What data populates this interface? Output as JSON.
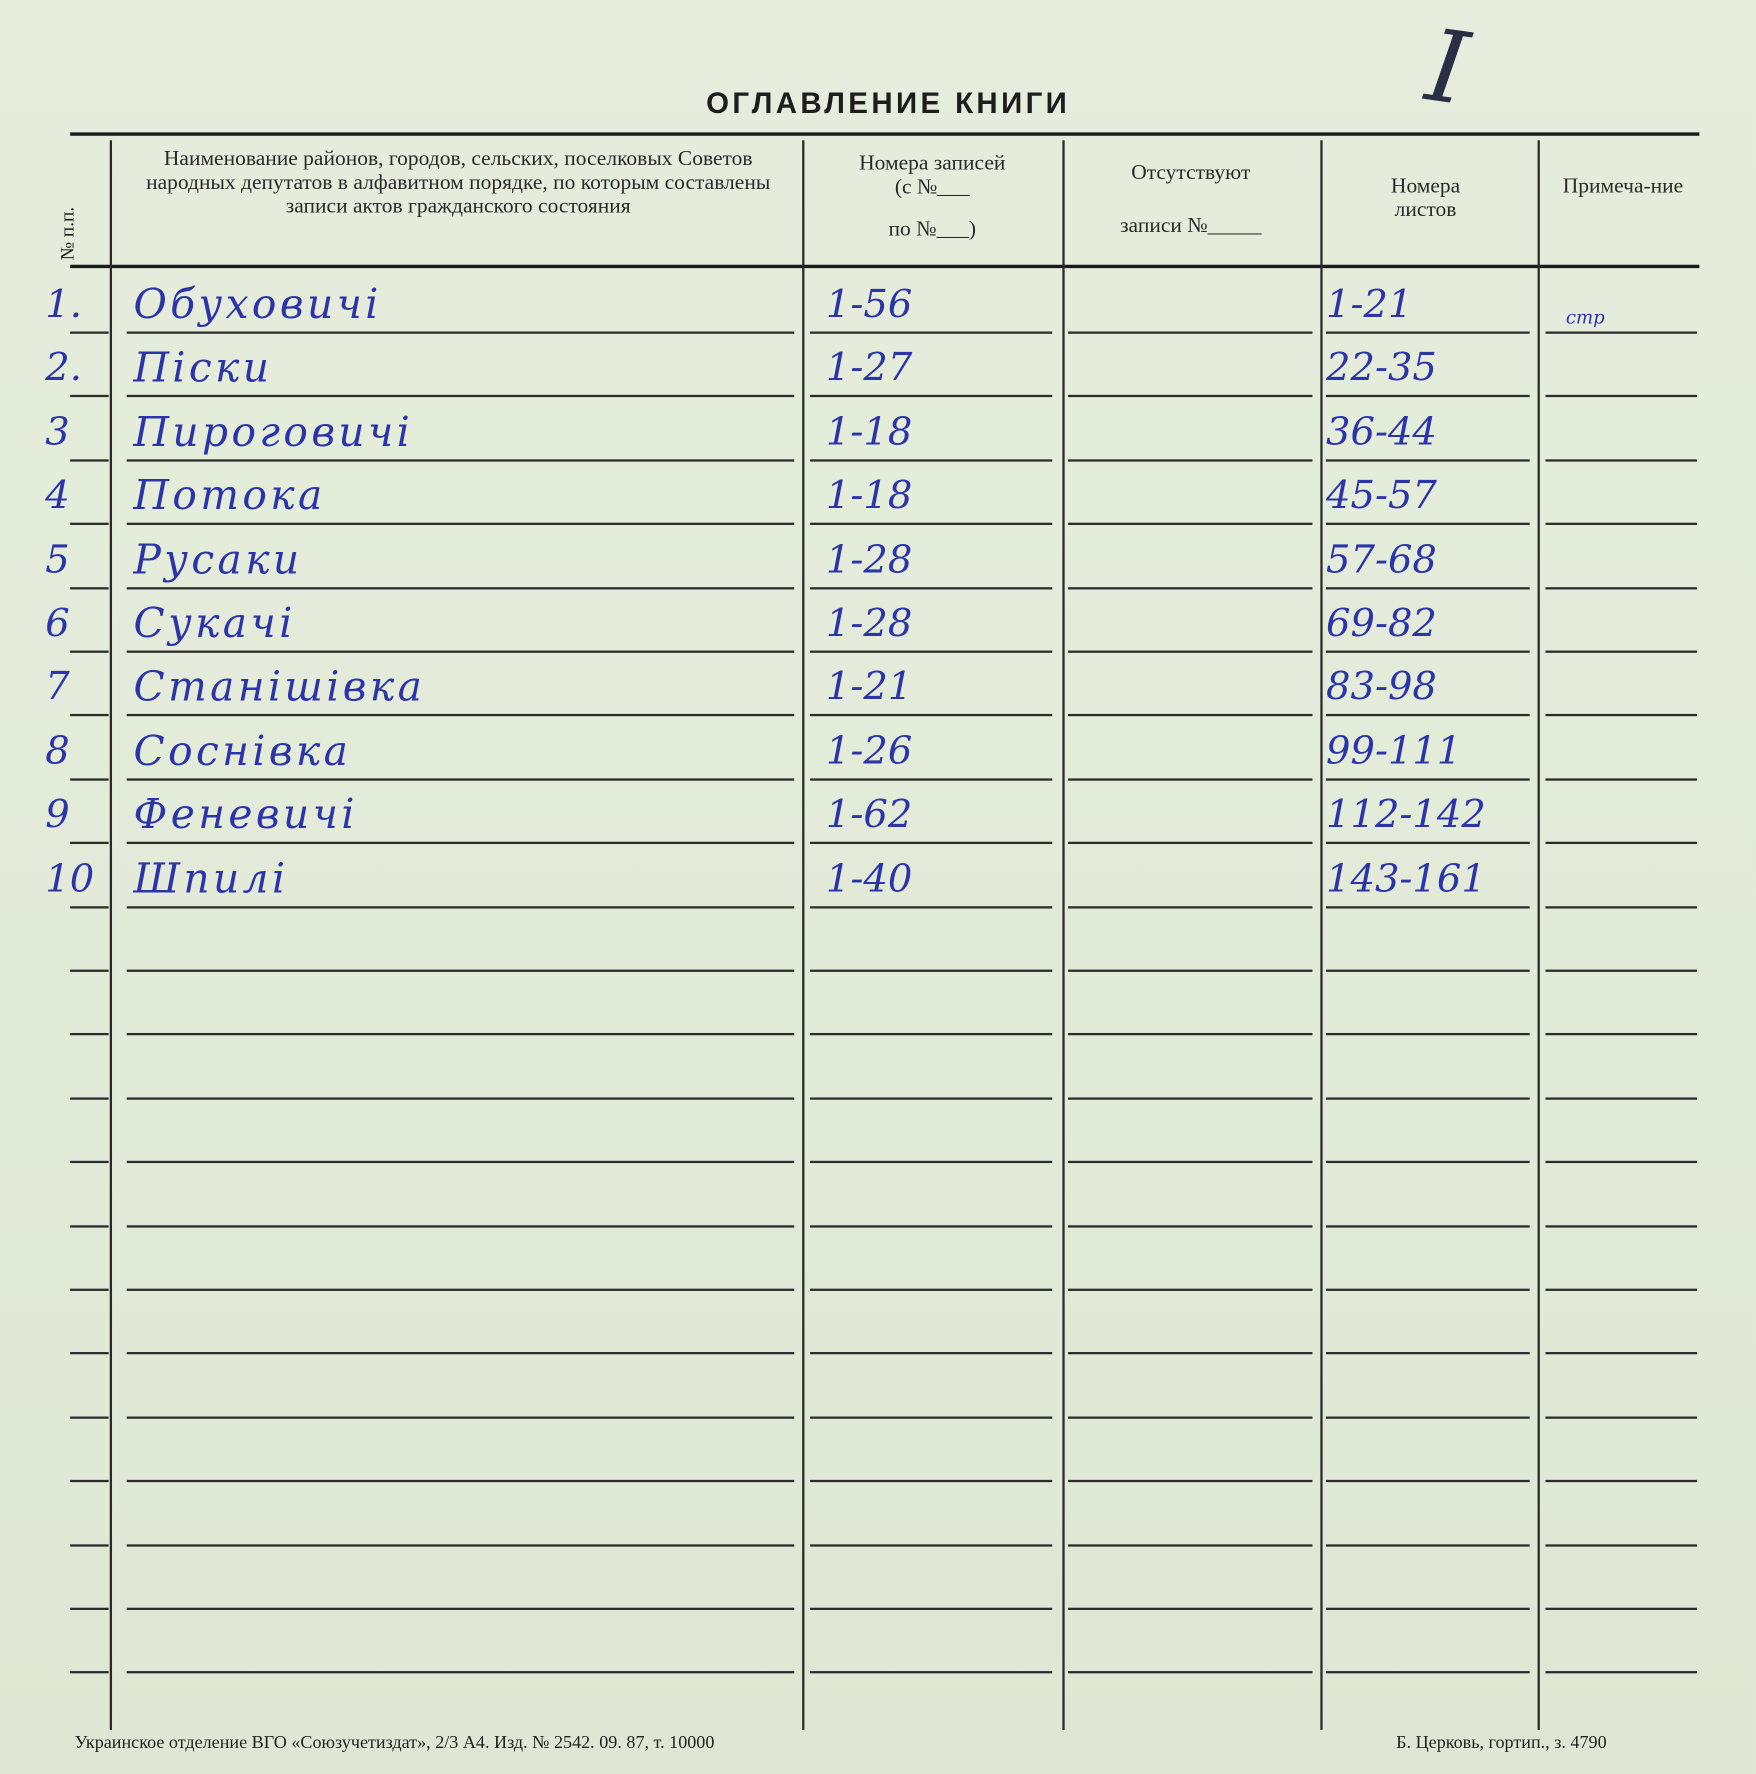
{
  "title": "ОГЛАВЛЕНИЕ КНИГИ",
  "corner_mark": "I",
  "headers": {
    "no": "№ п.п.",
    "name": "Наименование районов, городов, сельских, поселковых Советов народных депутатов в алфавитном порядке, по которым составлены записи актов гражданского состояния",
    "records_line1": "Номера записей",
    "records_line2": "(с №___",
    "records_line3": "по №___)",
    "absent_line1": "Отсутствуют",
    "absent_line2": "записи №_____",
    "sheets": "Номера листов",
    "note": "Примеча-ние"
  },
  "rows": [
    {
      "no": "1.",
      "name": "Обуховичі",
      "records": "1-56",
      "absent": "",
      "sheets": "1-21",
      "note": "стр"
    },
    {
      "no": "2.",
      "name": "Піски",
      "records": "1-27",
      "absent": "",
      "sheets": "22-35",
      "note": ""
    },
    {
      "no": "3",
      "name": "Пироговичі",
      "records": "1-18",
      "absent": "",
      "sheets": "36-44",
      "note": ""
    },
    {
      "no": "4",
      "name": "Потока",
      "records": "1-18",
      "absent": "",
      "sheets": "45-57",
      "note": ""
    },
    {
      "no": "5",
      "name": "Русаки",
      "records": "1-28",
      "absent": "",
      "sheets": "57-68",
      "note": ""
    },
    {
      "no": "6",
      "name": "Сукачі",
      "records": "1-28",
      "absent": "",
      "sheets": "69-82",
      "note": ""
    },
    {
      "no": "7",
      "name": "Станішівка",
      "records": "1-21",
      "absent": "",
      "sheets": "83-98",
      "note": ""
    },
    {
      "no": "8",
      "name": "Соснівка",
      "records": "1-26",
      "absent": "",
      "sheets": "99-111",
      "note": ""
    },
    {
      "no": "9",
      "name": "Феневичі",
      "records": "1-62",
      "absent": "",
      "sheets": "112-142",
      "note": ""
    },
    {
      "no": "10",
      "name": "Шпилі",
      "records": "1-40",
      "absent": "",
      "sheets": "143-161",
      "note": ""
    }
  ],
  "footer": {
    "left": "Украинское отделение ВГО «Союзучетиздат», 2/3 А4. Изд. № 2542. 09. 87, т. 10000",
    "right": "Б. Церковь, гортип., з. 4790"
  },
  "colors": {
    "ink": "#2b35a8",
    "paper": "#e3ebd9"
  }
}
